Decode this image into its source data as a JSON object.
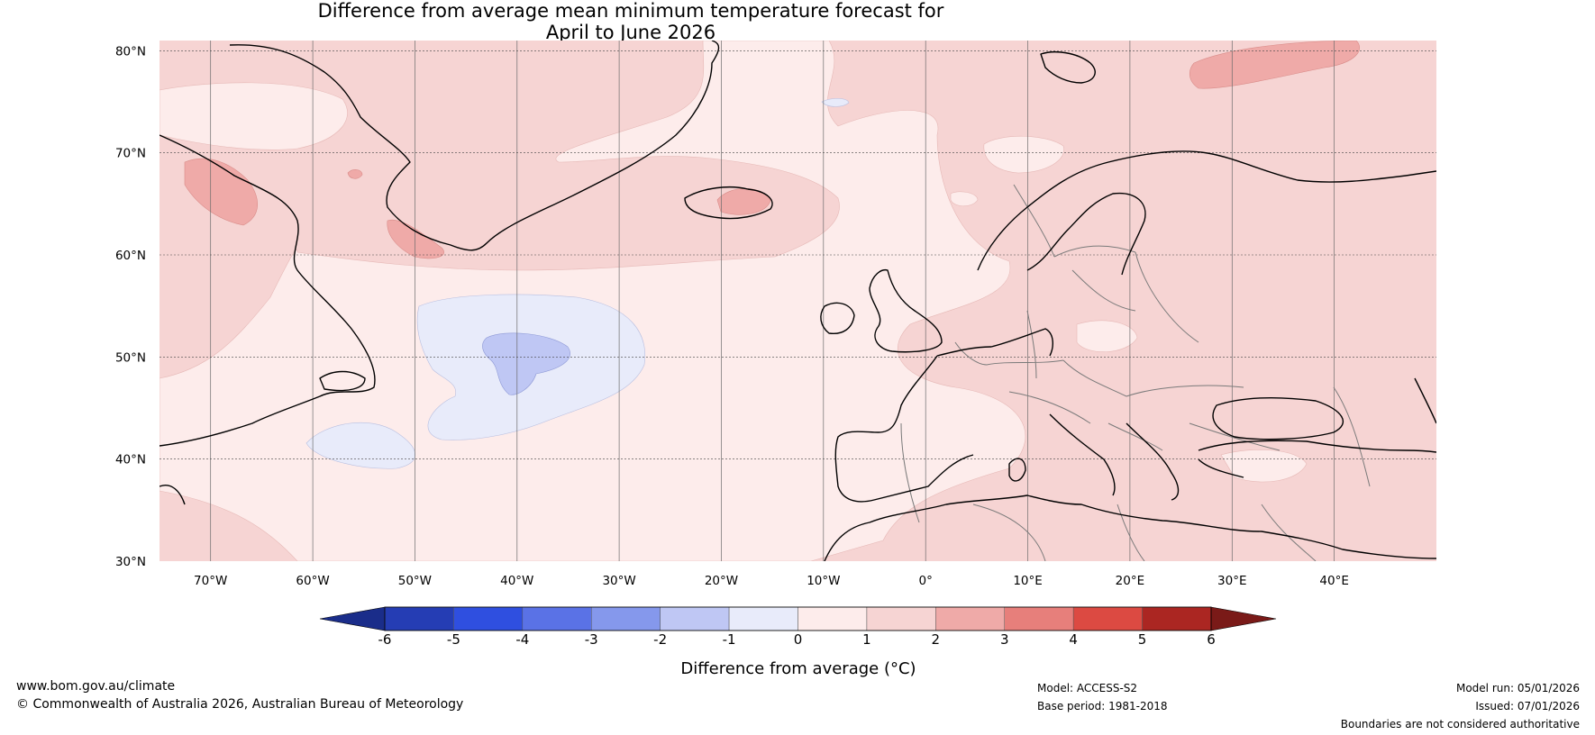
{
  "title": {
    "line1": "Difference from average mean minimum temperature forecast for",
    "line2": "April to June 2026"
  },
  "map": {
    "lat_labels": [
      "80°N",
      "70°N",
      "60°N",
      "50°N",
      "40°N",
      "30°N"
    ],
    "lon_labels": [
      "70°W",
      "60°W",
      "50°W",
      "40°W",
      "30°W",
      "20°W",
      "10°W",
      "0°",
      "10°E",
      "20°E",
      "30°E",
      "40°E"
    ],
    "lat_values": [
      80,
      70,
      60,
      50,
      40,
      30
    ],
    "lon_values": [
      -70,
      -60,
      -50,
      -40,
      -30,
      -20,
      -10,
      0,
      10,
      20,
      30,
      40
    ],
    "lat_range": [
      30,
      81
    ],
    "lon_range": [
      -75,
      50
    ]
  },
  "legend": {
    "title": "Difference from average (°C)",
    "tick_labels": [
      "-6",
      "-5",
      "-4",
      "-3",
      "-2",
      "-1",
      "0",
      "1",
      "2",
      "3",
      "4",
      "5",
      "6"
    ],
    "colors": [
      "#1a2d8a",
      "#253db4",
      "#2f4fe0",
      "#5a72e6",
      "#8598ec",
      "#bfc7f4",
      "#e8ebfa",
      "#fdeceb",
      "#f6d4d3",
      "#efaaa8",
      "#e77f7b",
      "#dc4a42",
      "#ab2622",
      "#7a1a18"
    ]
  },
  "footer": {
    "website": "www.bom.gov.au/climate",
    "copyright": "© Commonwealth of Australia 2026, Australian Bureau of Meteorology",
    "model": "Model: ACCESS-S2",
    "base_period": "Base period: 1981-2018",
    "model_run": "Model run: 05/01/2026",
    "issued": "Issued: 07/01/2026",
    "disclaimer": "Boundaries are not considered authoritative"
  }
}
